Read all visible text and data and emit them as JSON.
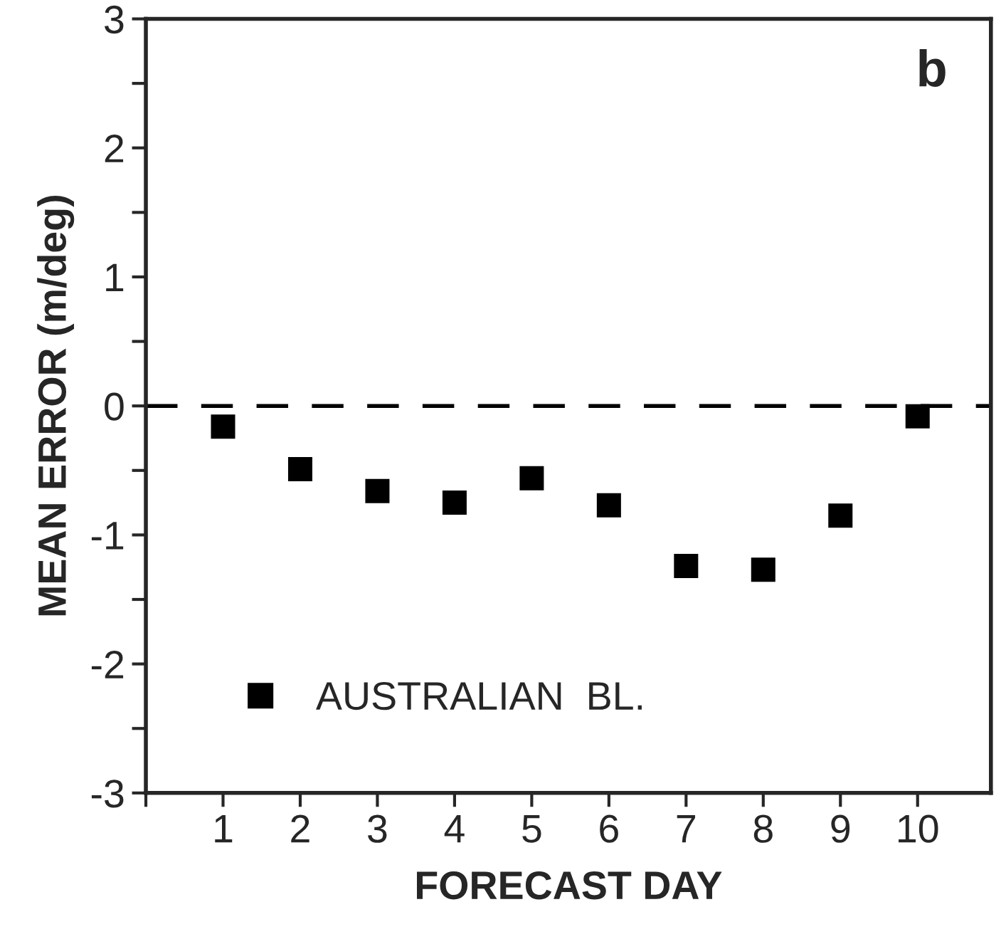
{
  "chart_data": {
    "type": "scatter",
    "x": [
      1,
      2,
      3,
      4,
      5,
      6,
      7,
      8,
      9,
      10
    ],
    "series": [
      {
        "name": "AUSTRALIAN  BL.",
        "color": "#000000",
        "values": [
          -0.16,
          -0.49,
          -0.66,
          -0.75,
          -0.56,
          -0.77,
          -1.24,
          -1.27,
          -0.85,
          -0.08
        ]
      }
    ],
    "xlabel": "FORECAST DAY",
    "ylabel": "MEAN ERROR (m/deg)",
    "annotations": [
      "b"
    ],
    "xlim": [
      0,
      10.95
    ],
    "ylim": [
      -3,
      3
    ],
    "xticks": [
      {
        "value": 0,
        "label": null
      },
      1,
      2,
      3,
      4,
      5,
      6,
      7,
      8,
      9,
      10
    ],
    "yticks": [
      -3,
      {
        "value": -2.5,
        "label": null
      },
      -2,
      {
        "value": -1.5,
        "label": null
      },
      -1,
      {
        "value": -0.5,
        "label": null
      },
      0,
      {
        "value": 0.5,
        "label": null
      },
      1,
      {
        "value": 1.5,
        "label": null
      },
      2,
      {
        "value": 2.5,
        "label": null
      },
      3
    ],
    "ref_lines": [
      {
        "axis": "y",
        "value": 0,
        "color": "#000000",
        "line_style": "dashed"
      }
    ],
    "marker": "square",
    "legend": "bottom left",
    "grid": false
  }
}
